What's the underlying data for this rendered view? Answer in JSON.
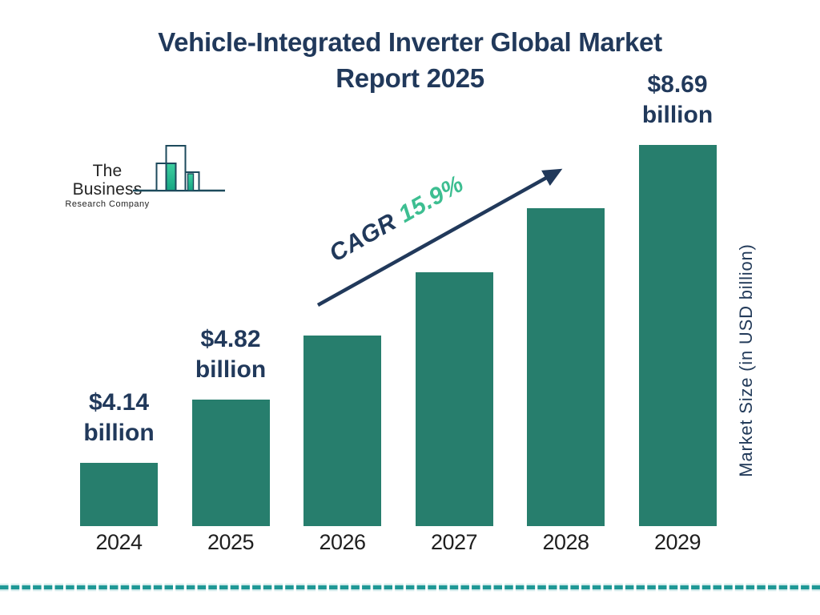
{
  "title": {
    "line1": "Vehicle-Integrated Inverter Global Market",
    "line2": "Report 2025"
  },
  "logo": {
    "name": "The Business",
    "subname": "Research Company"
  },
  "cagr": {
    "label": "CAGR",
    "value": "15.9%"
  },
  "y_axis_label": "Market Size (in USD billion)",
  "colors": {
    "navy": "#21395B",
    "bar_green": "#277E6D",
    "cagr_green": "#3DBE91",
    "dash_teal": "#1F9896",
    "dash_halo": "#D3EBEB",
    "year_text": "#1F1F1F",
    "logo_outline": "#1D4A5C",
    "logo_fill_top": "#3ECFA0",
    "logo_fill_bottom": "#17A583"
  },
  "chart_data": {
    "type": "bar",
    "title": "Vehicle-Integrated Inverter Global Market Report 2025",
    "categories": [
      "2024",
      "2025",
      "2026",
      "2027",
      "2028",
      "2029"
    ],
    "values": [
      4.14,
      4.82,
      5.59,
      6.48,
      7.5,
      8.69
    ],
    "unit": "USD billion",
    "xlabel": "",
    "ylabel": "Market Size (in USD billion)",
    "cagr": "15.9%",
    "bar_labels": [
      {
        "amount": "$4.14",
        "unit": "billion"
      },
      {
        "amount": "$4.82",
        "unit": "billion"
      },
      null,
      null,
      null,
      {
        "amount": "$8.69",
        "unit": "billion"
      }
    ],
    "labeled_on_chart": [
      true,
      true,
      false,
      false,
      false,
      true
    ],
    "values_note": "2026-2028 bars are unlabeled on the chart; values estimated from the stated 15.9% CAGR",
    "grid": false,
    "legend_position": "none",
    "bar_color": "#277E6D"
  }
}
